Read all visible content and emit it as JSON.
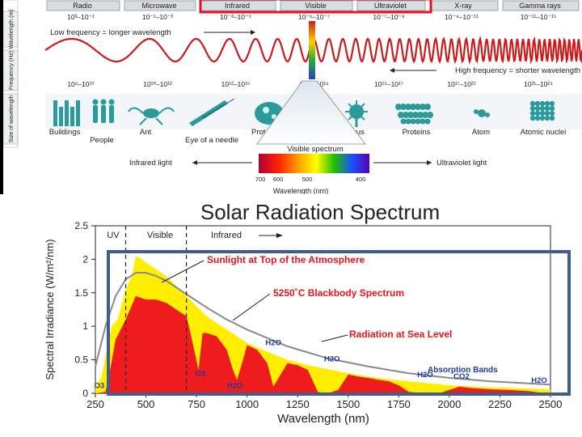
{
  "em_spectrum": {
    "row_labels": {
      "wavelength": "Wavelength (m)",
      "frequency": "Frequency (Hz)",
      "size": "Size of wavelength"
    },
    "bands": [
      {
        "name": "Radio",
        "wavelength": "10³–10⁻¹",
        "frequency": "10⁶–10¹⁰"
      },
      {
        "name": "Microwave",
        "wavelength": "10⁻¹–10⁻³",
        "frequency": "10¹⁰–10¹²"
      },
      {
        "name": "Infrared",
        "wavelength": "10⁻³–10⁻⁵",
        "frequency": "10¹²–10¹⁵"
      },
      {
        "name": "Visible",
        "wavelength": "10⁻⁶–10⁻⁷",
        "frequency": "10¹⁵–10¹⁶"
      },
      {
        "name": "Ultraviolet",
        "wavelength": "10⁻⁷–10⁻⁸",
        "frequency": "10¹⁵–10¹⁷"
      },
      {
        "name": "X-ray",
        "wavelength": "10⁻⁹–10⁻¹¹",
        "frequency": "10¹⁷–10²¹"
      },
      {
        "name": "Gamma rays",
        "wavelength": "10⁻¹¹–10⁻¹⁵",
        "frequency": "10²¹–10²⁴"
      }
    ],
    "highlighted_bands": [
      "Infrared",
      "Visible",
      "Ultraviolet"
    ],
    "low_freq_label": "Low frequency = longer wavelength",
    "high_freq_label": "High frequency = shorter wavelength",
    "size_examples": [
      "Buildings",
      "People",
      "Ant",
      "Eye of a needle",
      "Protozoa",
      "Virus",
      "Proteins",
      "Atom",
      "Atomic nuclei"
    ],
    "visible_spectrum": {
      "title": "Visible spectrum",
      "ticks": [
        "700",
        "600",
        "500",
        "400"
      ],
      "axis_label": "Wavelength (nm)",
      "left_label": "Infrared light",
      "right_label": "Ultraviolet light"
    }
  },
  "solar_chart": {
    "title": "Solar Radiation Spectrum",
    "ylabel": "Spectral Irradiance (W/m²/nm)",
    "xlabel": "Wavelength (nm)",
    "region_labels": [
      "UV",
      "Visible",
      "Infrared"
    ],
    "annotations": {
      "top": "Sunlight at Top of the Atmosphere",
      "blackbody": "5250˚C Blackbody Spectrum",
      "sea": "Radiation at Sea Level",
      "absorption": "Absorption Bands"
    },
    "molecules": [
      {
        "text": "O3",
        "nm": 270,
        "y": 0.08
      },
      {
        "text": "O2",
        "nm": 770,
        "y": 0.26
      },
      {
        "text": "H2O",
        "nm": 940,
        "y": 0.08
      },
      {
        "text": "H2O",
        "nm": 1130,
        "y": 0.72
      },
      {
        "text": "H2O",
        "nm": 1420,
        "y": 0.48
      },
      {
        "text": "H2O",
        "nm": 1880,
        "y": 0.24
      },
      {
        "text": "CO2",
        "nm": 2060,
        "y": 0.22
      },
      {
        "text": "H2O",
        "nm": 2580,
        "y": 0.16
      }
    ],
    "colors": {
      "top": "#ffee00",
      "sea": "#ee1c1c",
      "blackbody": "#8a8a8a",
      "annotation": "#e8141c",
      "molecule": "#1f3a9e",
      "select": "#3f5d8e",
      "highlight": "#e0141c"
    }
  },
  "chart_data": {
    "type": "area",
    "title": "Solar Radiation Spectrum",
    "xlabel": "Wavelength (nm)",
    "ylabel": "Spectral Irradiance (W/m²/nm)",
    "xlim": [
      250,
      2500
    ],
    "ylim": [
      0,
      2.5
    ],
    "xticks": [
      250,
      500,
      750,
      1000,
      1250,
      1500,
      1750,
      2000,
      2250,
      2500
    ],
    "yticks": [
      0,
      0.5,
      1,
      1.5,
      2,
      2.5
    ],
    "region_dividers_nm": [
      400,
      700
    ],
    "series": [
      {
        "name": "Sunlight at Top of the Atmosphere",
        "x": [
          250,
          280,
          300,
          330,
          360,
          400,
          430,
          450,
          480,
          500,
          550,
          600,
          650,
          700,
          750,
          800,
          900,
          1000,
          1100,
          1200,
          1300,
          1400,
          1500,
          1600,
          1700,
          1800,
          2000,
          2200,
          2400,
          2500
        ],
        "y": [
          0.08,
          0.25,
          0.55,
          1.0,
          1.1,
          1.55,
          1.75,
          2.05,
          2.0,
          1.95,
          1.85,
          1.75,
          1.6,
          1.45,
          1.3,
          1.15,
          0.95,
          0.75,
          0.62,
          0.5,
          0.42,
          0.36,
          0.3,
          0.25,
          0.21,
          0.18,
          0.12,
          0.09,
          0.07,
          0.06
        ]
      },
      {
        "name": "5250˚C Blackbody Spectrum",
        "x": [
          250,
          300,
          350,
          400,
          450,
          500,
          550,
          600,
          700,
          800,
          900,
          1000,
          1200,
          1400,
          1600,
          1800,
          2000,
          2200,
          2500
        ],
        "y": [
          0.4,
          1.0,
          1.45,
          1.7,
          1.8,
          1.8,
          1.75,
          1.68,
          1.48,
          1.28,
          1.1,
          0.95,
          0.7,
          0.52,
          0.4,
          0.3,
          0.23,
          0.18,
          0.13
        ]
      },
      {
        "name": "Radiation at Sea Level",
        "x": [
          250,
          300,
          320,
          350,
          400,
          450,
          500,
          550,
          600,
          650,
          700,
          720,
          760,
          780,
          800,
          850,
          900,
          930,
          950,
          980,
          1000,
          1050,
          1100,
          1130,
          1150,
          1200,
          1250,
          1300,
          1350,
          1400,
          1450,
          1500,
          1550,
          1600,
          1650,
          1700,
          1750,
          1800,
          1900,
          1950,
          2000,
          2050,
          2100,
          2200,
          2300,
          2400,
          2450,
          2500
        ],
        "y": [
          0,
          0.02,
          0.3,
          0.8,
          1.1,
          1.45,
          1.4,
          1.4,
          1.35,
          1.25,
          1.15,
          0.9,
          0.35,
          0.9,
          0.9,
          0.85,
          0.65,
          0.35,
          0.2,
          0.5,
          0.72,
          0.65,
          0.45,
          0.1,
          0.2,
          0.45,
          0.42,
          0.35,
          0.02,
          0.0,
          0.05,
          0.28,
          0.25,
          0.23,
          0.2,
          0.18,
          0.12,
          0.02,
          0.0,
          0.0,
          0.05,
          0.1,
          0.08,
          0.06,
          0.05,
          0.03,
          0.01,
          0.0
        ]
      }
    ],
    "legend": "none"
  }
}
